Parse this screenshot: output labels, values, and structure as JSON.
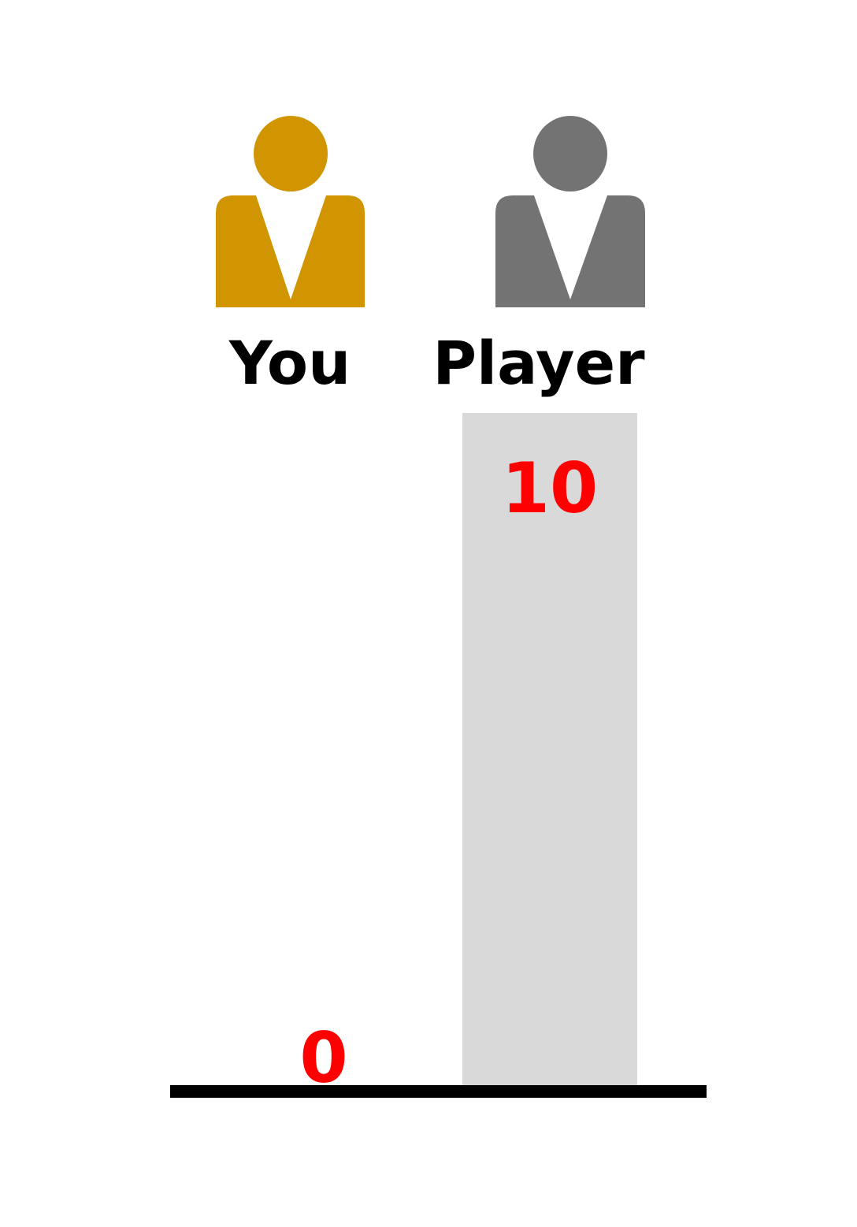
{
  "chart_data": {
    "type": "bar",
    "categories": [
      "You",
      "Player"
    ],
    "values": [
      0,
      10
    ],
    "ylim": [
      0,
      10
    ],
    "grid": false,
    "legend": "none"
  },
  "colors": {
    "bar": "#d9d9d9",
    "value_label": "#ff0000",
    "axis": "#000000",
    "you_icon": "#d09500",
    "player_icon": "#737373"
  },
  "icons": [
    "person-icon-you",
    "person-icon-player"
  ]
}
